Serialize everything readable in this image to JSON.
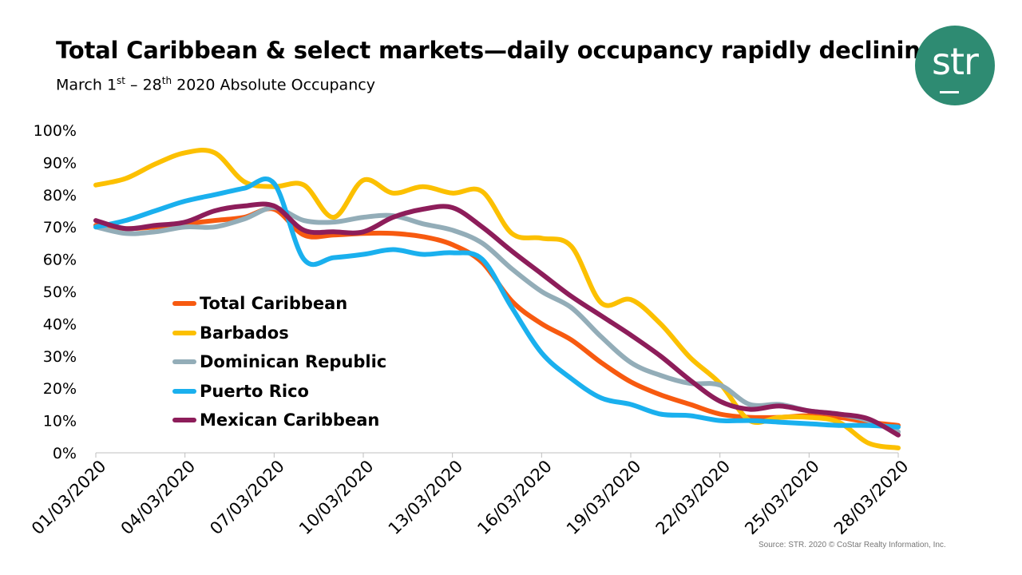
{
  "header": {
    "title": "Total Caribbean & select markets—daily occupancy rapidly declining",
    "subtitle_pre": "March 1",
    "subtitle_sup1": "st",
    "subtitle_mid": " – 28",
    "subtitle_sup2": "th",
    "subtitle_post": " 2020 Absolute Occupancy"
  },
  "logo": {
    "text": "str",
    "color": "#2e8b72"
  },
  "source": "Source: STR. 2020 © CoStar Realty Information, Inc.",
  "chart_data": {
    "type": "line",
    "title": "Total Caribbean & select markets—daily occupancy rapidly declining",
    "xlabel": "",
    "ylabel": "",
    "ylim": [
      0,
      100
    ],
    "yticks": [
      "0%",
      "10%",
      "20%",
      "30%",
      "40%",
      "50%",
      "60%",
      "70%",
      "80%",
      "90%",
      "100%"
    ],
    "xtick_labels": [
      "01/03/2020",
      "04/03/2020",
      "07/03/2020",
      "10/03/2020",
      "13/03/2020",
      "16/03/2020",
      "19/03/2020",
      "22/03/2020",
      "25/03/2020",
      "28/03/2020"
    ],
    "legend_position": "middle-left",
    "x": [
      1,
      2,
      3,
      4,
      5,
      6,
      7,
      8,
      9,
      10,
      11,
      12,
      13,
      14,
      15,
      16,
      17,
      18,
      19,
      20,
      21,
      22,
      23,
      24,
      25,
      26,
      27,
      28
    ],
    "series": [
      {
        "name": "Total Caribbean",
        "color": "#f75a10",
        "values": [
          70.5,
          69.5,
          70,
          71,
          72,
          73,
          75.5,
          67.5,
          67.5,
          68,
          68,
          67,
          64.5,
          59,
          47,
          40,
          35,
          28,
          22,
          18,
          15,
          12,
          11,
          11,
          11.5,
          11,
          9.5,
          8.5
        ]
      },
      {
        "name": "Barbados",
        "color": "#fcc000",
        "values": [
          83,
          85,
          89.5,
          93,
          93,
          84,
          82.5,
          83,
          73,
          84.5,
          80.5,
          82.5,
          80.5,
          81,
          68,
          66.5,
          64,
          46.5,
          47.5,
          40,
          29.5,
          21.5,
          10,
          11,
          11,
          9.5,
          3,
          1.5
        ]
      },
      {
        "name": "Dominican Republic",
        "color": "#93adb8",
        "values": [
          70,
          68,
          68.5,
          70,
          70,
          72.5,
          76,
          72,
          71.5,
          73,
          73.5,
          71,
          69,
          65,
          57,
          50,
          45,
          36,
          28,
          24,
          21.5,
          21,
          15,
          15,
          13,
          12,
          10,
          6.5
        ]
      },
      {
        "name": "Puerto Rico",
        "color": "#1ab0ee",
        "values": [
          70,
          72,
          75,
          78,
          80,
          82,
          83.5,
          60,
          60.5,
          61.5,
          63,
          61.5,
          62,
          60,
          45,
          31,
          23,
          17,
          15,
          12,
          11.5,
          10,
          10,
          9.5,
          9,
          8.5,
          8.5,
          8
        ]
      },
      {
        "name": "Mexican Caribbean",
        "color": "#8d1d5a",
        "values": [
          72,
          69.5,
          70.5,
          71.5,
          75,
          76.5,
          76.5,
          69,
          68.5,
          68.5,
          73,
          75.5,
          76,
          70,
          62.5,
          55.5,
          48.5,
          42.5,
          36.5,
          30,
          22.5,
          16,
          13.5,
          14.5,
          13,
          12,
          10.5,
          5.5
        ]
      }
    ]
  }
}
